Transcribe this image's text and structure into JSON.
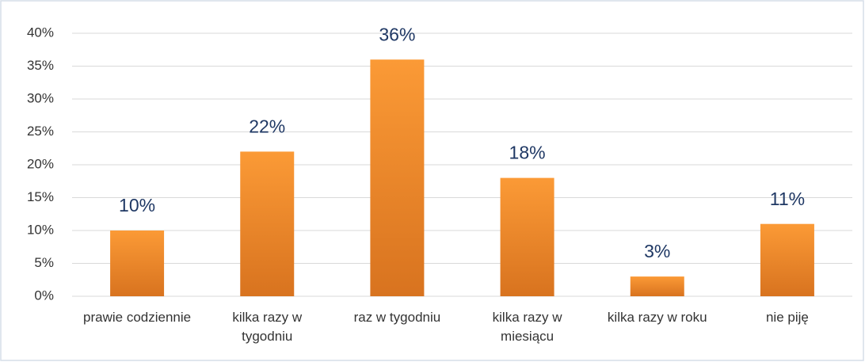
{
  "chart_data": {
    "type": "bar",
    "categories": [
      "prawie codziennie",
      "kilka razy w tygodniu",
      "raz w tygodniu",
      "kilka razy w miesiącu",
      "kilka razy w roku",
      "nie piję"
    ],
    "values": [
      10,
      22,
      36,
      18,
      3,
      11
    ],
    "value_labels": [
      "10%",
      "22%",
      "36%",
      "18%",
      "3%",
      "11%"
    ],
    "color": "#f28e2b",
    "ylim": [
      0,
      40
    ],
    "yticks": [
      {
        "value": 0,
        "label": "0%"
      },
      {
        "value": 5,
        "label": "5%"
      },
      {
        "value": 10,
        "label": "10%"
      },
      {
        "value": 15,
        "label": "15%"
      },
      {
        "value": 20,
        "label": "20%"
      },
      {
        "value": 25,
        "label": "25%"
      },
      {
        "value": 30,
        "label": "30%"
      },
      {
        "value": 35,
        "label": "35%"
      },
      {
        "value": 40,
        "label": "40%"
      }
    ],
    "grid": true
  }
}
